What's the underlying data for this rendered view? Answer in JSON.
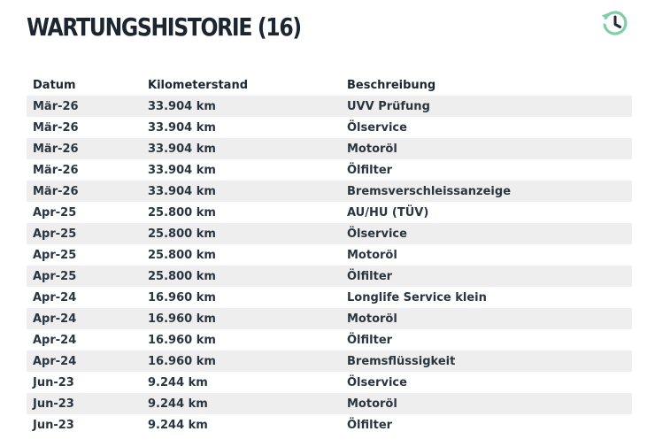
{
  "header": {
    "title": "WARTUNGSHISTORIE (16)",
    "icon": "history-icon",
    "accent_color": "#7ed0a8"
  },
  "table": {
    "columns": [
      "Datum",
      "Kilometerstand",
      "Beschreibung"
    ],
    "rows": [
      [
        "Mär-26",
        "33.904 km",
        "UVV Prüfung"
      ],
      [
        "Mär-26",
        "33.904 km",
        "Ölservice"
      ],
      [
        "Mär-26",
        "33.904 km",
        "Motoröl"
      ],
      [
        "Mär-26",
        "33.904 km",
        "Ölfilter"
      ],
      [
        "Mär-26",
        "33.904 km",
        "Bremsverschleissanzeige"
      ],
      [
        "Apr-25",
        "25.800 km",
        "AU/HU (TÜV)"
      ],
      [
        "Apr-25",
        "25.800 km",
        "Ölservice"
      ],
      [
        "Apr-25",
        "25.800 km",
        "Motoröl"
      ],
      [
        "Apr-25",
        "25.800 km",
        "Ölfilter"
      ],
      [
        "Apr-24",
        "16.960 km",
        "Longlife Service klein"
      ],
      [
        "Apr-24",
        "16.960 km",
        "Motoröl"
      ],
      [
        "Apr-24",
        "16.960 km",
        "Ölfilter"
      ],
      [
        "Apr-24",
        "16.960 km",
        "Bremsflüssigkeit"
      ],
      [
        "Jun-23",
        "9.244 km",
        "Ölservice"
      ],
      [
        "Jun-23",
        "9.244 km",
        "Motoröl"
      ],
      [
        "Jun-23",
        "9.244 km",
        "Ölfilter"
      ]
    ]
  }
}
